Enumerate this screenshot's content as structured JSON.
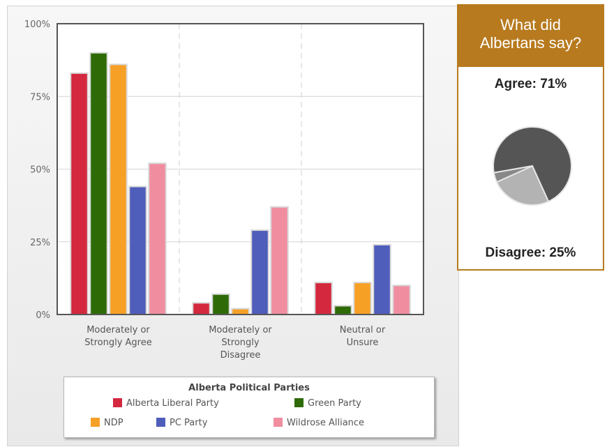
{
  "chart_data": {
    "type": "bar",
    "categories": [
      "Moderately or Strongly Agree",
      "Moderately or Strongly Disagree",
      "Neutral or Unsure"
    ],
    "category_lines": [
      [
        "Moderately or",
        "Strongly Agree"
      ],
      [
        "Moderately or",
        "Strongly",
        "Disagree"
      ],
      [
        "Neutral or",
        "Unsure"
      ]
    ],
    "series": [
      {
        "name": "Alberta Liberal Party",
        "color": "#d4283f",
        "values": [
          83,
          4,
          11
        ]
      },
      {
        "name": "Green Party",
        "color": "#2e6b07",
        "values": [
          90,
          7,
          3
        ]
      },
      {
        "name": "NDP",
        "color": "#f7a026",
        "values": [
          86,
          2,
          11
        ]
      },
      {
        "name": "PC Party",
        "color": "#4f5dbb",
        "values": [
          44,
          29,
          24
        ]
      },
      {
        "name": "Wildrose Alliance",
        "color": "#f08ea0",
        "values": [
          52,
          37,
          10
        ]
      }
    ],
    "ylim": [
      0,
      100
    ],
    "yticks": [
      "0%",
      "25%",
      "50%",
      "75%",
      "100%"
    ],
    "ytick_values": [
      0,
      25,
      50,
      75,
      100
    ],
    "legend_title": "Alberta Political Parties",
    "legend_placement": "bottom",
    "grid": true
  },
  "summary": {
    "title_line1": "What did",
    "title_line2": "Albertans say?",
    "agree_text": "Agree: 71%",
    "disagree_text": "Disagree: 25%",
    "pie": [
      {
        "label": "Agree",
        "value": 71,
        "color": "#555555"
      },
      {
        "label": "Disagree",
        "value": 25,
        "color": "#b3b3b3"
      },
      {
        "label": "Neutral or Unsure",
        "value": 4,
        "color": "#888888"
      }
    ]
  }
}
